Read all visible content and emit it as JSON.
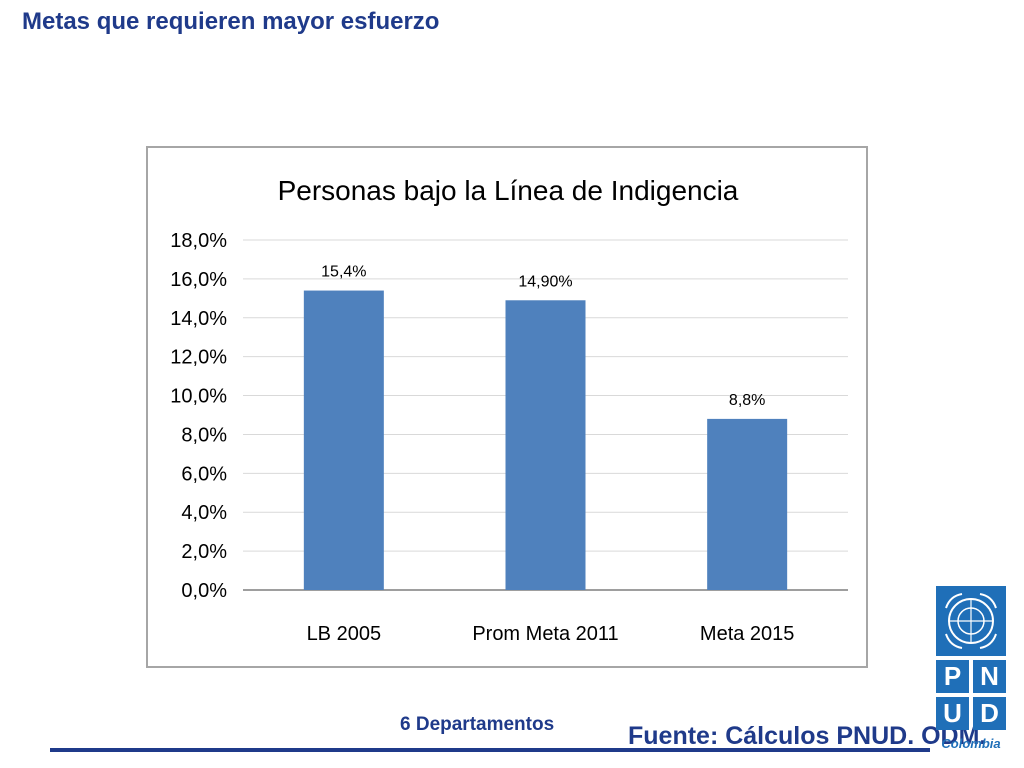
{
  "slide": {
    "title": "Metas que requieren mayor esfuerzo",
    "footer_note": "6 Departamentos",
    "source": "Fuente: Cálculos PNUD. ODM.",
    "accent_color": "#1F3A8A"
  },
  "logo": {
    "letters": [
      "P",
      "N",
      "U",
      "D"
    ],
    "country": "Colombia",
    "color": "#1F6FB8",
    "emblem": "un-emblem-icon"
  },
  "chart_data": {
    "type": "bar",
    "title": "Personas bajo la Línea de Indigencia",
    "categories": [
      "LB 2005",
      "Prom Meta 2011",
      "Meta 2015"
    ],
    "values": [
      15.4,
      14.9,
      8.8
    ],
    "value_labels": [
      "15,4%",
      "14,90%",
      "8,8%"
    ],
    "yticks": [
      "0,0%",
      "2,0%",
      "4,0%",
      "6,0%",
      "8,0%",
      "10,0%",
      "12,0%",
      "14,0%",
      "16,0%",
      "18,0%"
    ],
    "ylim": [
      0,
      18
    ],
    "grid": true,
    "legend": "none",
    "bar_color": "#4F81BD"
  }
}
